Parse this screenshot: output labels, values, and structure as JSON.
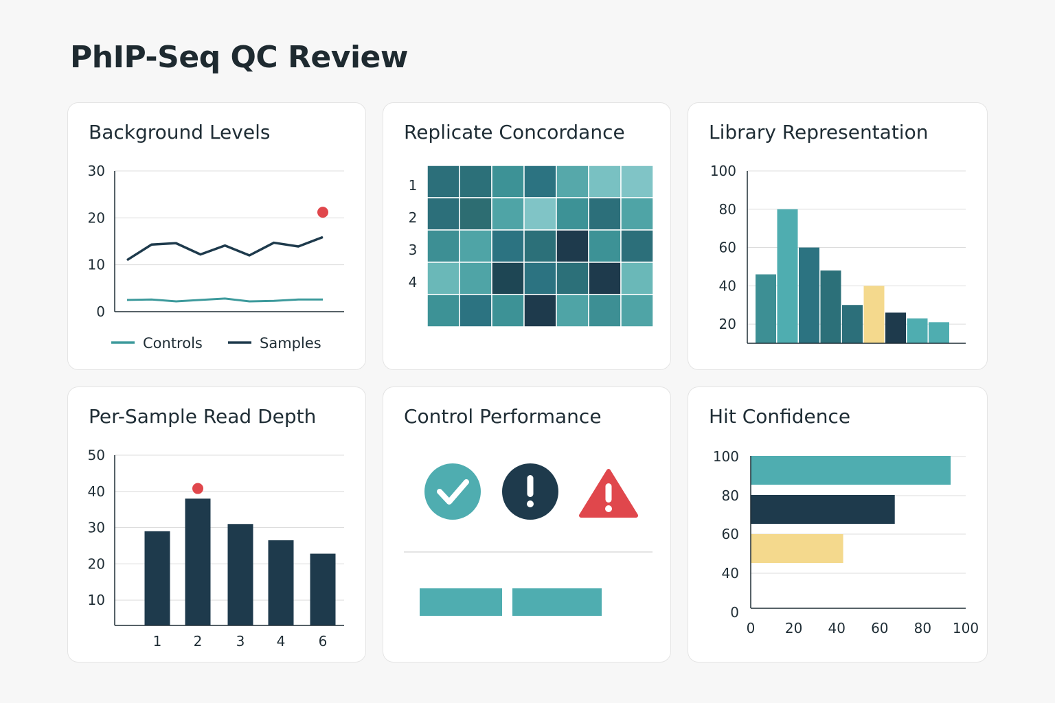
{
  "page": {
    "title": "PhIP-Seq QC Review"
  },
  "colors": {
    "teal_light": "#80c4c6",
    "teal": "#4fadb0",
    "teal_mid": "#3d9296",
    "teal_dark": "#2c6f7a",
    "navy": "#1e3a4c",
    "yellow": "#f4d98d",
    "red": "#e0474c"
  },
  "cards": {
    "background": {
      "title": "Background Levels"
    },
    "replicate": {
      "title": "Replicate Concordance"
    },
    "library": {
      "title": "Library Representation"
    },
    "depth": {
      "title": "Per-Sample Read Depth"
    },
    "control": {
      "title": "Control Performance"
    },
    "hits": {
      "title": "Hit Confidence"
    }
  },
  "control_performance": {
    "status_icons": [
      "check-circle-icon",
      "exclamation-circle-icon",
      "warning-triangle-icon"
    ],
    "status_colors": [
      "#4fadb0",
      "#1e3a4c",
      "#e0474c"
    ],
    "bars": 2
  },
  "chart_data": [
    {
      "id": "background",
      "type": "line",
      "title": "Background Levels",
      "x": [
        1,
        2,
        3,
        4,
        5,
        6,
        7,
        8,
        9
      ],
      "ylim": [
        0,
        30
      ],
      "yticks": [
        0,
        10,
        20,
        30
      ],
      "grid": true,
      "legend": "bottom",
      "series": [
        {
          "name": "Controls",
          "color": "#3d9a9c",
          "values": [
            2.5,
            2.6,
            2.2,
            2.5,
            2.8,
            2.2,
            2.3,
            2.6,
            2.6
          ]
        },
        {
          "name": "Samples",
          "color": "#1e3a4c",
          "values": [
            11,
            14.3,
            14.6,
            12.2,
            14.1,
            12.0,
            14.7,
            13.9,
            15.9
          ]
        }
      ],
      "outlier": {
        "x": 9,
        "y": 21.2,
        "color": "#e0474c"
      }
    },
    {
      "id": "replicate",
      "type": "heatmap",
      "title": "Replicate Concordance",
      "row_labels": [
        "",
        "1",
        "2",
        "3",
        "4"
      ],
      "matrix": [
        [
          "#2c6f7a",
          "#2c7079",
          "#3d9296",
          "#2c7381",
          "#56a8aa",
          "#79c1c2",
          "#80c4c6"
        ],
        [
          "#2c6f7a",
          "#2d6d72",
          "#4fa4a6",
          "#80c4c6",
          "#3d9296",
          "#2c6f7a",
          "#4fa4a6"
        ],
        [
          "#3d8f94",
          "#4fa4a6",
          "#2c7381",
          "#2c7079",
          "#1e3a4c",
          "#3d9296",
          "#2c6f7a"
        ],
        [
          "#6ab8b8",
          "#4fa4a6",
          "#1e4654",
          "#2c7381",
          "#2c7079",
          "#1e3a4c",
          "#6ab8b8"
        ],
        [
          "#3d9296",
          "#2c7381",
          "#3d9296",
          "#1e3a4c",
          "#4fa4a6",
          "#3d8f94",
          "#4fa4a6"
        ]
      ]
    },
    {
      "id": "library",
      "type": "bar",
      "title": "Library Representation",
      "values": [
        46,
        80,
        60,
        48,
        30,
        40,
        26,
        23,
        21
      ],
      "colors": [
        "#3d8f94",
        "#4fadb0",
        "#2c7381",
        "#2c7079",
        "#2c6f7a",
        "#f4d98d",
        "#1e3a4c",
        "#4fadb0",
        "#4fadb0"
      ],
      "ylim": [
        10,
        100
      ],
      "yticks": [
        20,
        40,
        60,
        80,
        100
      ],
      "grid": true
    },
    {
      "id": "depth",
      "type": "bar",
      "title": "Per-Sample Read Depth",
      "categories": [
        "1",
        "2",
        "3",
        "4",
        "6"
      ],
      "values": [
        29,
        38,
        31,
        26.5,
        22.8
      ],
      "color": "#1e3a4c",
      "ylim": [
        3,
        50
      ],
      "yticks": [
        10,
        20,
        30,
        40,
        50
      ],
      "grid": true,
      "outlier": {
        "category": "2",
        "y": 40.8,
        "color": "#e0474c"
      }
    },
    {
      "id": "hits",
      "type": "bar",
      "orientation": "horizontal",
      "title": "Hit Confidence",
      "values": [
        93,
        67,
        43
      ],
      "colors": [
        "#4fadb0",
        "#1e3a4c",
        "#f4d98d"
      ],
      "xlim": [
        0,
        100
      ],
      "xticks": [
        0,
        20,
        40,
        60,
        80,
        100
      ],
      "yticks": [
        0,
        40,
        60,
        80,
        100
      ],
      "grid": true
    }
  ]
}
